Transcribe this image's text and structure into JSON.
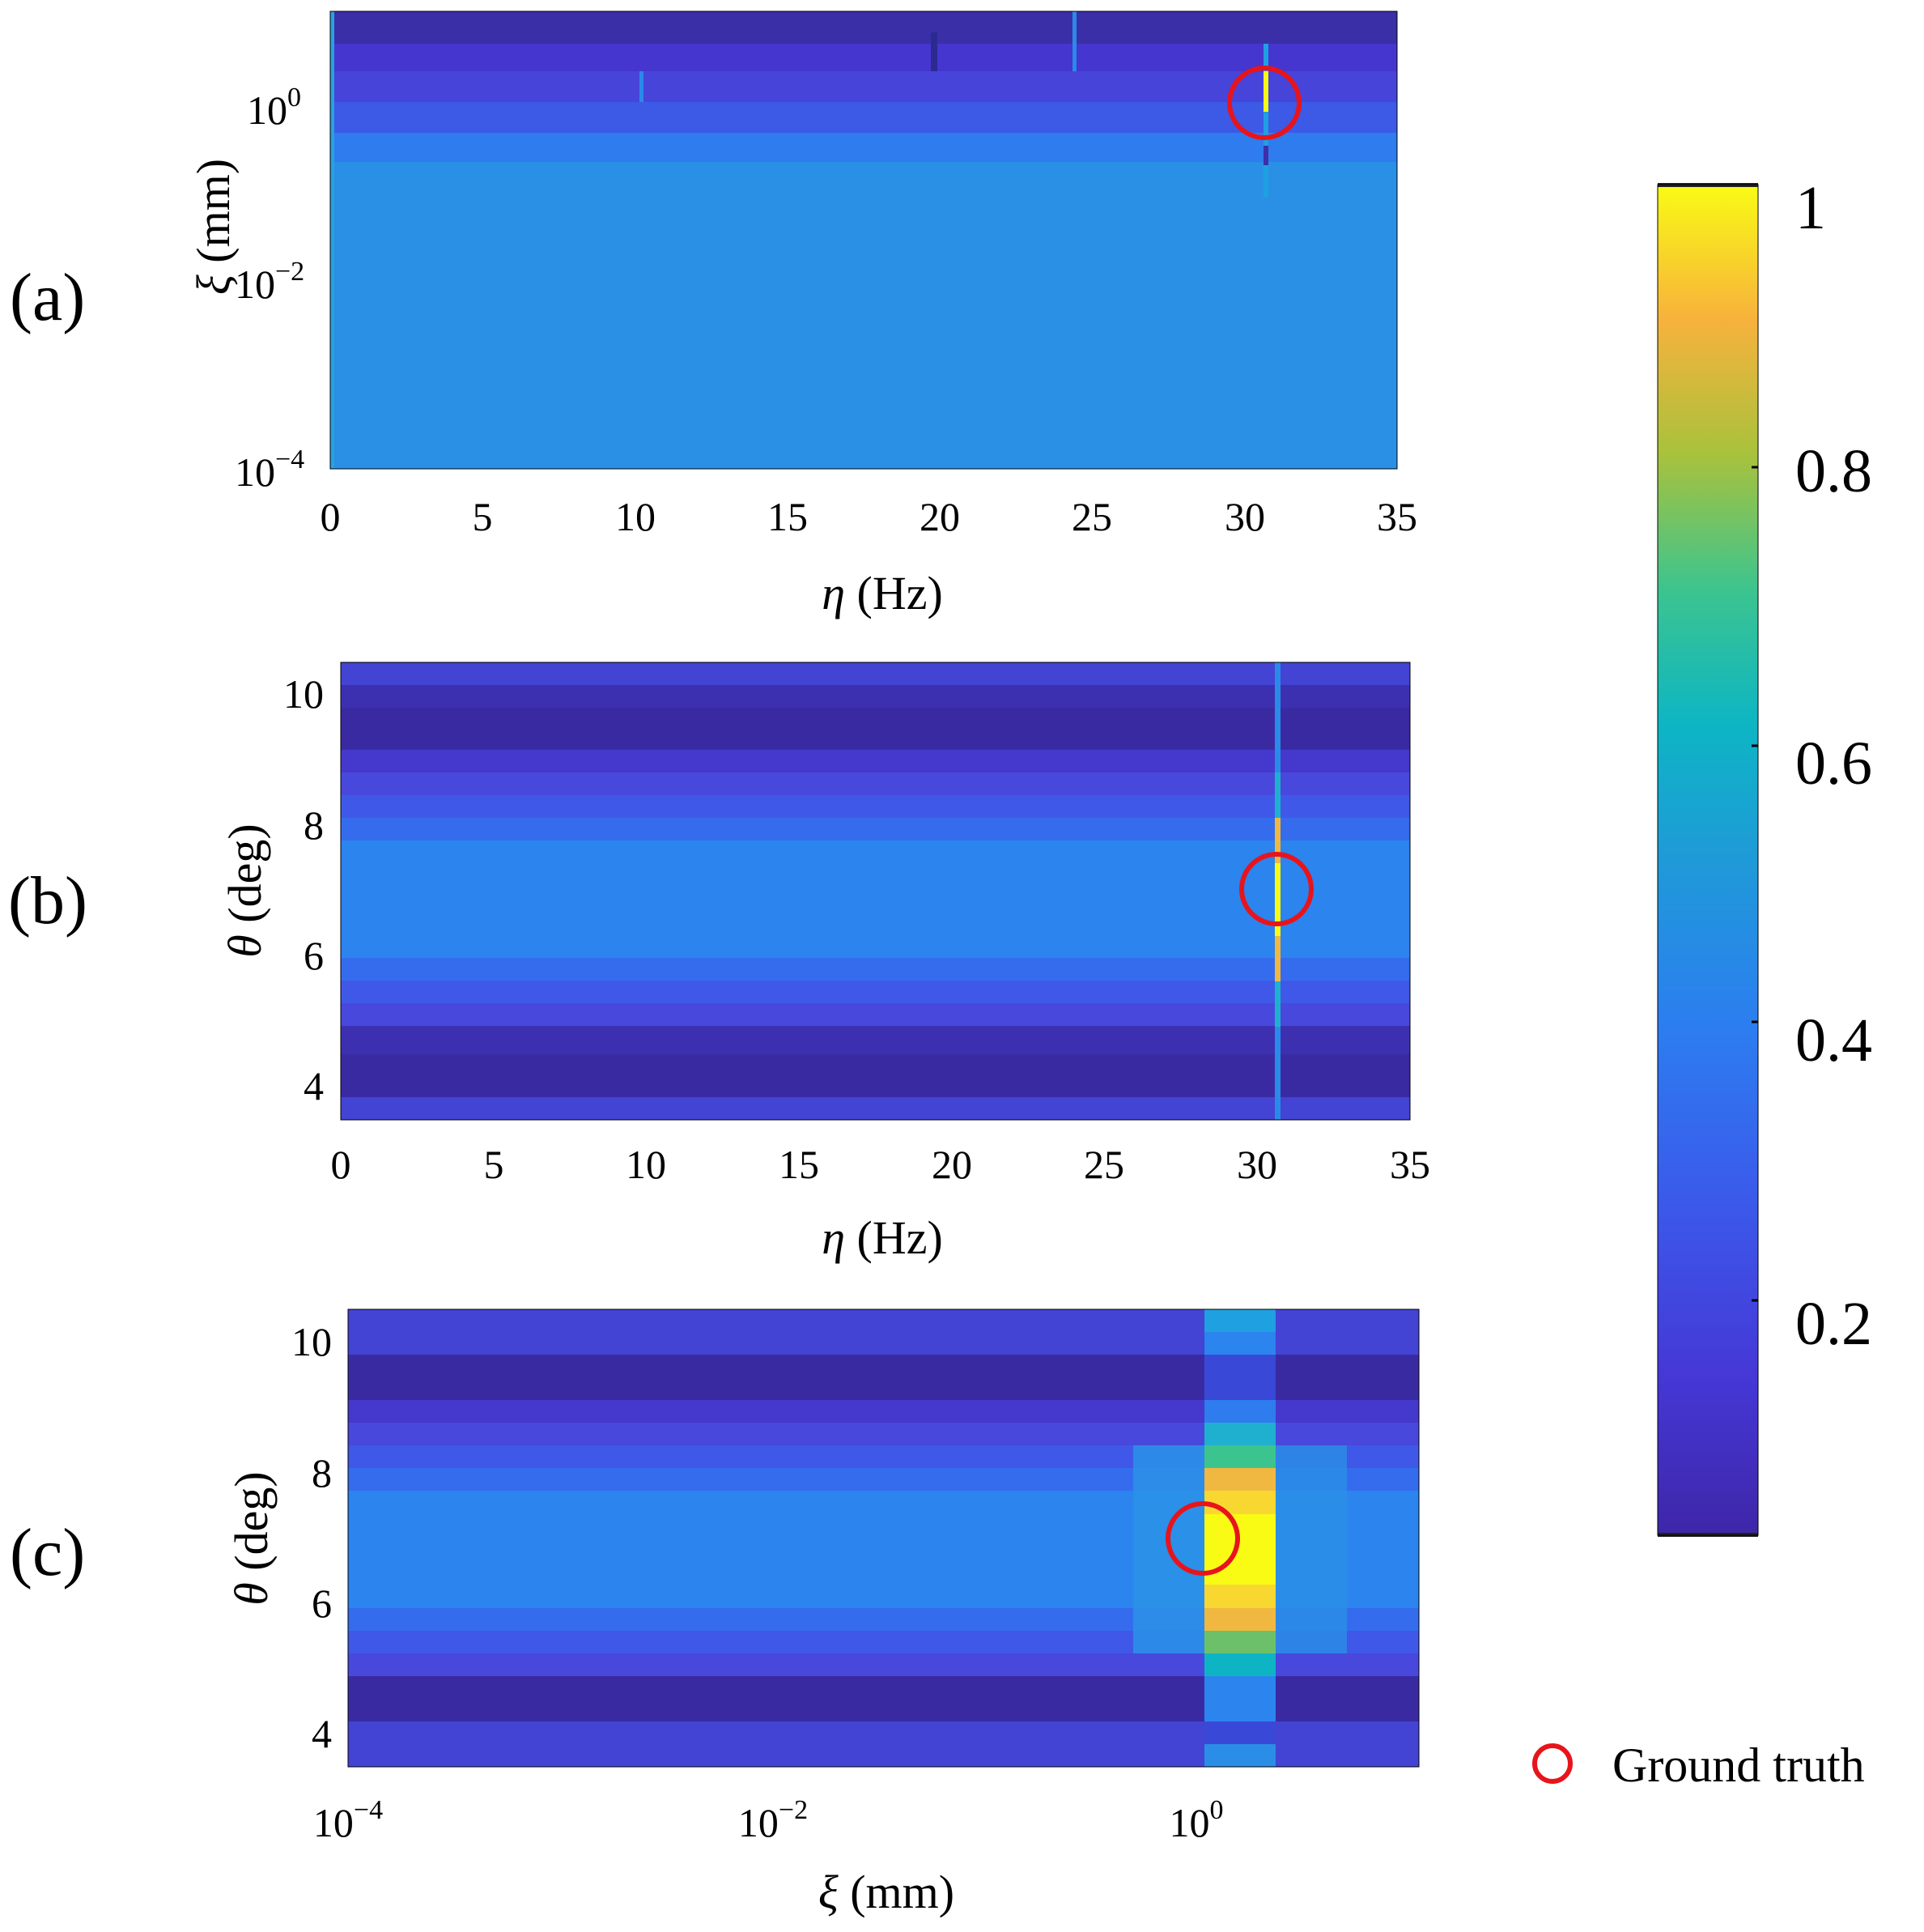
{
  "chart_data": [
    {
      "panel": "(a)",
      "type": "heatmap",
      "xlabel": "η (Hz)",
      "ylabel": "ξ (mm)",
      "x_range": [
        0,
        35
      ],
      "y_range": [
        0.0001,
        10
      ],
      "y_scale": "log",
      "x_ticks": [
        "0",
        "5",
        "10",
        "15",
        "20",
        "25",
        "30",
        "35"
      ],
      "y_ticks": [
        "10^0",
        "10^-2",
        "10^-4"
      ],
      "ground_truth": {
        "x": 30.5,
        "y": 1
      },
      "peak_value": 1
    },
    {
      "panel": "(b)",
      "type": "heatmap",
      "xlabel": "η (Hz)",
      "ylabel": "θ (deg)",
      "x_range": [
        0,
        35
      ],
      "y_range": [
        3.5,
        10.5
      ],
      "x_ticks": [
        "0",
        "5",
        "10",
        "15",
        "20",
        "25",
        "30",
        "35"
      ],
      "y_ticks": [
        "10",
        "8",
        "6",
        "4"
      ],
      "ground_truth": {
        "x": 30.5,
        "y": 7
      },
      "peak_value": 1
    },
    {
      "panel": "(c)",
      "type": "heatmap",
      "xlabel": "ξ (mm)",
      "ylabel": "θ (deg)",
      "x_range": [
        0.0001,
        10
      ],
      "x_scale": "log",
      "y_range": [
        3.5,
        10.5
      ],
      "x_ticks": [
        "10^-4",
        "10^-2",
        "10^0"
      ],
      "y_ticks": [
        "10",
        "8",
        "6",
        "4"
      ],
      "ground_truth": {
        "x": 1,
        "y": 7
      },
      "peak_value": 1
    }
  ],
  "colorbar": {
    "colormap": "parula",
    "range": [
      0.05,
      1
    ],
    "ticks": [
      "1",
      "0.8",
      "0.6",
      "0.4",
      "0.2"
    ]
  },
  "legend": {
    "label": "Ground truth",
    "marker_color": "#e8141b"
  }
}
